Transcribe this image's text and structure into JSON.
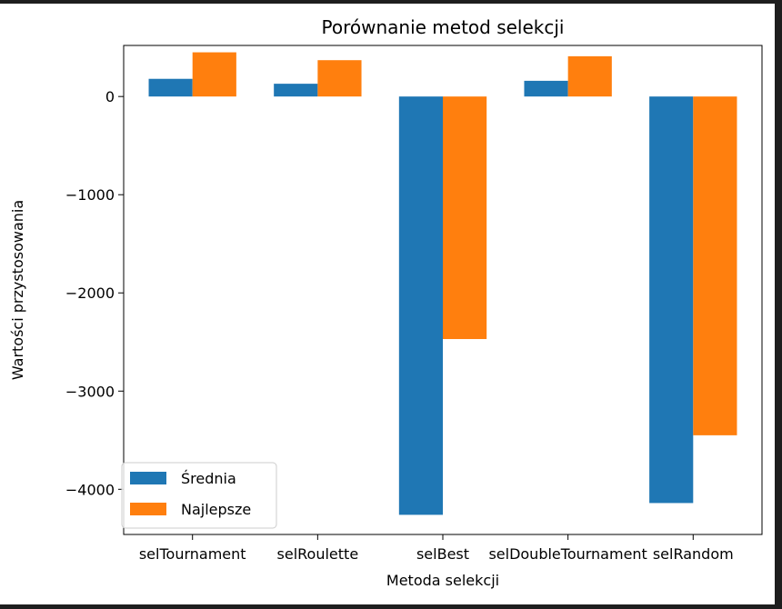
{
  "chart_data": {
    "type": "bar",
    "title": "Porównanie metod selekcji",
    "xlabel": "Metoda selekcji",
    "ylabel": "Wartości przystosowania",
    "categories": [
      "selTournament",
      "selRoulette",
      "selBest",
      "selDoubleTournament",
      "selRandom"
    ],
    "series": [
      {
        "name": "Średnia",
        "color": "#1f77b4",
        "values": [
          180,
          130,
          -4260,
          160,
          -4140
        ]
      },
      {
        "name": "Najlepsze",
        "color": "#ff7f0e",
        "values": [
          450,
          370,
          -2470,
          410,
          -3450
        ]
      }
    ],
    "yticks": [
      0,
      -1000,
      -2000,
      -3000,
      -4000
    ],
    "ytick_labels": [
      "0",
      "−1000",
      "−2000",
      "−3000",
      "−4000"
    ],
    "ylim": [
      -4460,
      520
    ],
    "legend_position": "lower-left",
    "grid": false
  }
}
